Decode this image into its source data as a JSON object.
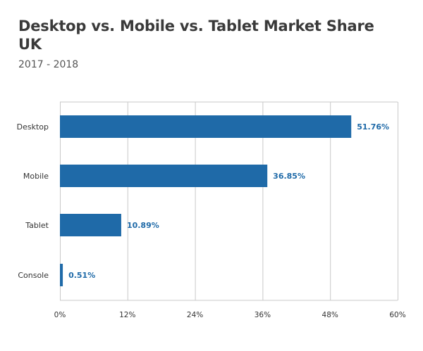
{
  "chart_data": {
    "type": "bar",
    "orientation": "horizontal",
    "title": "Desktop vs. Mobile vs. Tablet Market Share UK",
    "subtitle": "2017 - 2018",
    "categories": [
      "Desktop",
      "Mobile",
      "Tablet",
      "Console"
    ],
    "values": [
      51.76,
      36.85,
      10.89,
      0.51
    ],
    "value_labels": [
      "51.76%",
      "36.85%",
      "10.89%",
      "0.51%"
    ],
    "x_ticks": [
      0,
      12,
      24,
      36,
      48,
      60
    ],
    "x_tick_labels": [
      "0%",
      "12%",
      "24%",
      "36%",
      "48%",
      "60%"
    ],
    "xlim": [
      0,
      60
    ],
    "xlabel": "",
    "ylabel": "",
    "grid": true,
    "colors": {
      "bar": "#1f6aa8",
      "grid": "#c8c8c8",
      "value_label": "#1f6aa8"
    }
  }
}
